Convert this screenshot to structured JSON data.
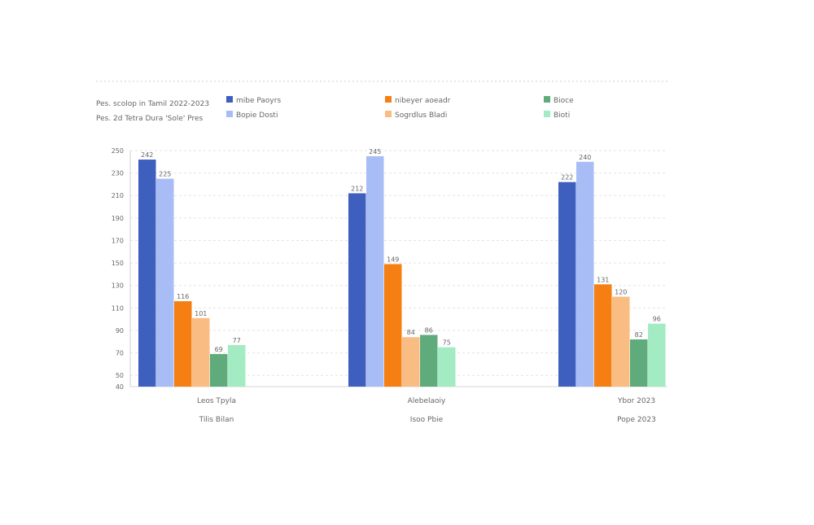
{
  "header": {
    "line1": "Pes. scolop in Tamil 2022-2023",
    "line2": "Pes. 2d Tetra Dura 'Sole' Pres"
  },
  "chart_data": {
    "type": "bar",
    "title": "",
    "xlabel": "",
    "ylabel": "",
    "ylim": [
      40,
      250
    ],
    "yticks": [
      250,
      230,
      210,
      190,
      170,
      150,
      130,
      110,
      90,
      70,
      50,
      40
    ],
    "grid": true,
    "legend_position": "top",
    "categories": [
      {
        "line1": "Leos Tpyla",
        "line2": "Tilis Bilan"
      },
      {
        "line1": "Alebelaoiy",
        "line2": "Isoo Pbie"
      },
      {
        "line1": "Ybor 2023",
        "line2": "Pope 2023"
      }
    ],
    "series": [
      {
        "name": "mibe Paoyrs",
        "color": "#3f5fbe",
        "values": [
          242,
          212,
          222
        ]
      },
      {
        "name": "Bopie Dosti",
        "color": "#a8bdf5",
        "values": [
          225,
          245,
          240
        ]
      },
      {
        "name": "nibeyer aoeadr",
        "color": "#f57f12",
        "values": [
          116,
          149,
          131
        ]
      },
      {
        "name": "Sogrdlus Bladi",
        "color": "#f9bc83",
        "values": [
          101,
          84,
          120
        ]
      },
      {
        "name": "Bioce",
        "color": "#5fab7b",
        "values": [
          69,
          86,
          82
        ]
      },
      {
        "name": "Bioti",
        "color": "#a3ebc2",
        "values": [
          77,
          75,
          96
        ]
      }
    ],
    "value_labels": [
      [
        "242",
        "225",
        "116",
        "101",
        "69",
        "77"
      ],
      [
        "212",
        "245",
        "149",
        "84",
        "86",
        "75"
      ],
      [
        "222",
        "240",
        "131",
        "120",
        "82",
        "96"
      ]
    ]
  }
}
